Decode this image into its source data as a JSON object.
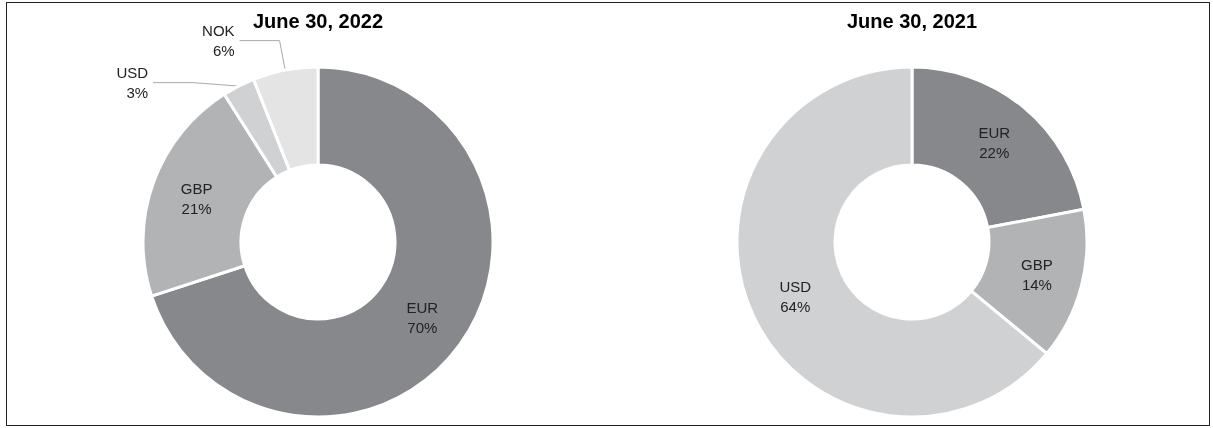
{
  "chart_data": [
    {
      "type": "donut",
      "title": "June 30, 2022",
      "categories": [
        "EUR",
        "GBP",
        "USD",
        "NOK"
      ],
      "values": [
        70,
        21,
        3,
        6
      ],
      "value_labels": [
        "70%",
        "21%",
        "3%",
        "6%"
      ],
      "colors": [
        "#87888c",
        "#b2b3b5",
        "#d0d1d3",
        "#e4e4e5"
      ],
      "legend": false
    },
    {
      "type": "donut",
      "title": "June 30, 2021",
      "categories": [
        "EUR",
        "GBP",
        "USD"
      ],
      "values": [
        22,
        14,
        64
      ],
      "value_labels": [
        "22%",
        "14%",
        "64%"
      ],
      "colors": [
        "#87888c",
        "#b2b3b5",
        "#d0d1d3"
      ],
      "legend": false
    }
  ]
}
